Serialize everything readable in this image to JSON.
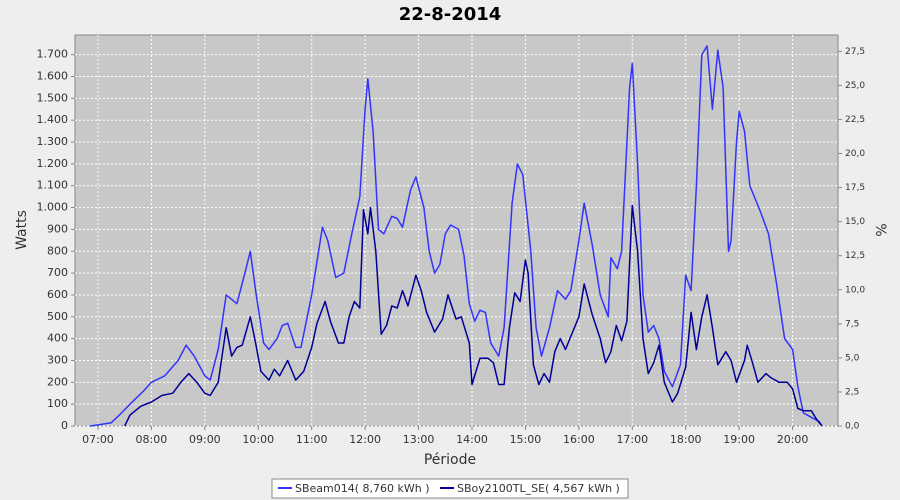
{
  "chart_data": {
    "type": "line",
    "title": "22-8-2014",
    "x_label": "Période",
    "y_label": "Watts",
    "y2_label": "%",
    "xlim": [
      6.57,
      20.85
    ],
    "ylim": [
      0,
      1790
    ],
    "y2lim": [
      0,
      28.7
    ],
    "grid": true,
    "legend": "bottom",
    "xticks": [
      {
        "value": 7,
        "label": "07:00"
      },
      {
        "value": 8,
        "label": "08:00"
      },
      {
        "value": 9,
        "label": "09:00"
      },
      {
        "value": 10,
        "label": "10:00"
      },
      {
        "value": 11,
        "label": "11:00"
      },
      {
        "value": 12,
        "label": "12:00"
      },
      {
        "value": 13,
        "label": "13:00"
      },
      {
        "value": 14,
        "label": "14:00"
      },
      {
        "value": 15,
        "label": "15:00"
      },
      {
        "value": 16,
        "label": "16:00"
      },
      {
        "value": 17,
        "label": "17:00"
      },
      {
        "value": 18,
        "label": "18:00"
      },
      {
        "value": 19,
        "label": "19:00"
      },
      {
        "value": 20,
        "label": "20:00"
      }
    ],
    "yticks": [
      0,
      100,
      200,
      300,
      400,
      500,
      600,
      700,
      800,
      900,
      {
        "value": 1000,
        "label": "1.000"
      },
      {
        "value": 1100,
        "label": "1.100"
      },
      {
        "value": 1200,
        "label": "1.200"
      },
      {
        "value": 1300,
        "label": "1.300"
      },
      {
        "value": 1400,
        "label": "1.400"
      },
      {
        "value": 1500,
        "label": "1.500"
      },
      {
        "value": 1600,
        "label": "1.600"
      },
      {
        "value": 1700,
        "label": "1.700"
      }
    ],
    "y2ticks": [
      {
        "value": 0,
        "label": "0,0"
      },
      {
        "value": 2.5,
        "label": "2,5"
      },
      {
        "value": 5,
        "label": "5,0"
      },
      {
        "value": 7.5,
        "label": "7,5"
      },
      {
        "value": 10,
        "label": "10,0"
      },
      {
        "value": 12.5,
        "label": "12,5"
      },
      {
        "value": 15,
        "label": "15,0"
      },
      {
        "value": 17.5,
        "label": "17,5"
      },
      {
        "value": 20,
        "label": "20,0"
      },
      {
        "value": 22.5,
        "label": "22,5"
      },
      {
        "value": 25,
        "label": "25,0"
      },
      {
        "value": 27.5,
        "label": "27,5"
      }
    ],
    "series": [
      {
        "name": "SBeam014( 8,760 kWh )",
        "color": "#3333ff",
        "x": [
          6.85,
          7.0,
          7.25,
          7.4,
          7.6,
          7.85,
          8.0,
          8.25,
          8.5,
          8.65,
          8.8,
          9.0,
          9.1,
          9.25,
          9.4,
          9.6,
          9.75,
          9.85,
          9.95,
          10.1,
          10.2,
          10.35,
          10.45,
          10.55,
          10.7,
          10.8,
          11.0,
          11.2,
          11.3,
          11.45,
          11.6,
          11.75,
          11.9,
          12.0,
          12.05,
          12.15,
          12.25,
          12.35,
          12.5,
          12.6,
          12.7,
          12.85,
          12.95,
          13.1,
          13.2,
          13.3,
          13.4,
          13.5,
          13.6,
          13.75,
          13.85,
          13.95,
          14.05,
          14.15,
          14.25,
          14.35,
          14.5,
          14.6,
          14.75,
          14.85,
          14.95,
          15.1,
          15.2,
          15.3,
          15.45,
          15.6,
          15.75,
          15.85,
          16.0,
          16.1,
          16.25,
          16.4,
          16.55,
          16.6,
          16.72,
          16.8,
          16.95,
          17.0,
          17.1,
          17.2,
          17.3,
          17.4,
          17.5,
          17.6,
          17.75,
          17.9,
          18.0,
          18.1,
          18.2,
          18.3,
          18.4,
          18.5,
          18.6,
          18.7,
          18.8,
          18.85,
          18.95,
          19.0,
          19.1,
          19.2,
          19.4,
          19.55,
          19.7,
          19.85,
          20.0,
          20.1,
          20.2,
          20.35,
          20.5,
          20.55
        ],
        "values": [
          0,
          5,
          15,
          50,
          100,
          160,
          200,
          230,
          300,
          370,
          320,
          230,
          210,
          350,
          600,
          560,
          700,
          800,
          620,
          380,
          350,
          400,
          460,
          470,
          360,
          360,
          600,
          910,
          850,
          680,
          700,
          880,
          1050,
          1450,
          1590,
          1350,
          900,
          880,
          960,
          950,
          910,
          1080,
          1140,
          1000,
          800,
          700,
          740,
          880,
          920,
          900,
          780,
          560,
          480,
          530,
          520,
          380,
          320,
          450,
          1020,
          1200,
          1150,
          800,
          450,
          320,
          450,
          620,
          580,
          620,
          850,
          1020,
          830,
          600,
          500,
          770,
          720,
          800,
          1550,
          1660,
          1200,
          600,
          430,
          460,
          400,
          250,
          180,
          280,
          690,
          620,
          1100,
          1700,
          1740,
          1450,
          1720,
          1550,
          800,
          850,
          1300,
          1440,
          1350,
          1100,
          980,
          880,
          650,
          400,
          350,
          180,
          60,
          40,
          20,
          0
        ]
      },
      {
        "name": "SBoy2100TL_SE( 4,567 kWh )",
        "color": "#000099",
        "x": [
          7.5,
          7.6,
          7.8,
          8.0,
          8.2,
          8.4,
          8.55,
          8.7,
          8.85,
          9.0,
          9.1,
          9.25,
          9.4,
          9.5,
          9.6,
          9.7,
          9.85,
          9.95,
          10.05,
          10.2,
          10.3,
          10.4,
          10.55,
          10.7,
          10.85,
          11.0,
          11.1,
          11.25,
          11.35,
          11.5,
          11.6,
          11.7,
          11.8,
          11.9,
          11.97,
          12.05,
          12.1,
          12.2,
          12.3,
          12.4,
          12.5,
          12.6,
          12.7,
          12.8,
          12.95,
          13.05,
          13.15,
          13.3,
          13.45,
          13.55,
          13.7,
          13.8,
          13.95,
          14.0,
          14.15,
          14.3,
          14.4,
          14.5,
          14.6,
          14.7,
          14.8,
          14.9,
          15.0,
          15.05,
          15.15,
          15.25,
          15.35,
          15.45,
          15.55,
          15.65,
          15.75,
          15.85,
          16.0,
          16.1,
          16.25,
          16.4,
          16.5,
          16.6,
          16.7,
          16.8,
          16.9,
          17.0,
          17.1,
          17.2,
          17.3,
          17.4,
          17.5,
          17.6,
          17.75,
          17.85,
          18.0,
          18.1,
          18.2,
          18.3,
          18.4,
          18.5,
          18.6,
          18.75,
          18.85,
          18.95,
          19.1,
          19.15,
          19.25,
          19.35,
          19.5,
          19.6,
          19.75,
          19.9,
          20.0,
          20.1,
          20.2,
          20.35,
          20.45,
          20.55
        ],
        "values": [
          0,
          50,
          90,
          110,
          140,
          150,
          200,
          240,
          200,
          150,
          140,
          200,
          450,
          320,
          360,
          370,
          500,
          380,
          250,
          210,
          260,
          230,
          300,
          210,
          250,
          360,
          470,
          570,
          480,
          380,
          380,
          500,
          570,
          540,
          990,
          880,
          1000,
          800,
          420,
          460,
          550,
          540,
          620,
          550,
          690,
          620,
          520,
          430,
          490,
          600,
          490,
          500,
          380,
          190,
          310,
          310,
          290,
          190,
          190,
          450,
          610,
          570,
          760,
          700,
          280,
          190,
          240,
          200,
          340,
          400,
          350,
          410,
          500,
          650,
          510,
          400,
          290,
          340,
          460,
          390,
          480,
          1010,
          800,
          400,
          240,
          290,
          370,
          200,
          110,
          150,
          270,
          520,
          350,
          500,
          600,
          450,
          280,
          340,
          300,
          200,
          300,
          370,
          290,
          200,
          240,
          220,
          200,
          200,
          170,
          80,
          70,
          70,
          30,
          0
        ]
      }
    ]
  }
}
